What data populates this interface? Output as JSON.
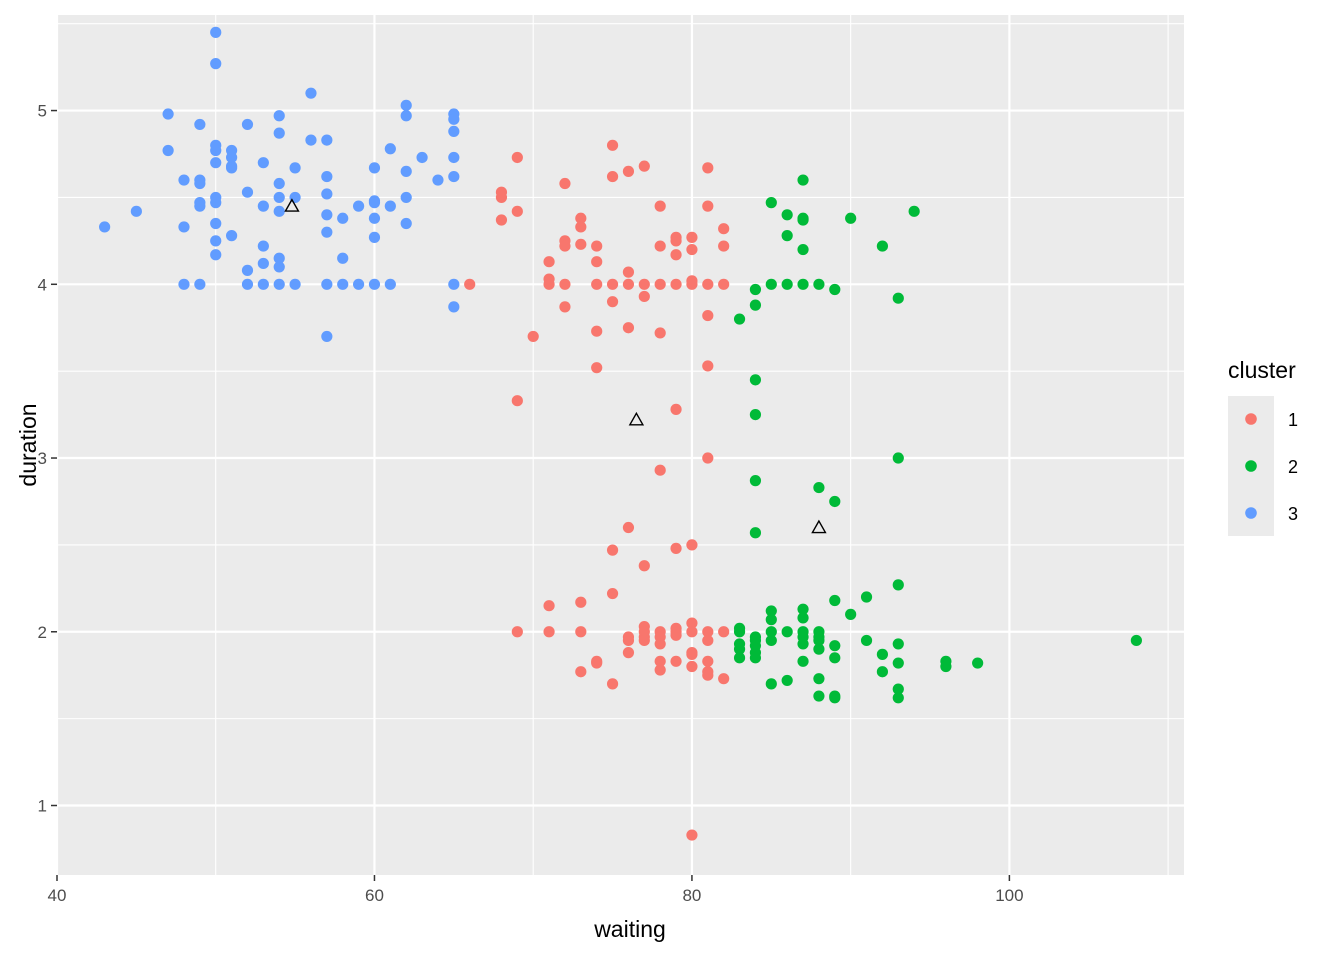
{
  "chart_data": {
    "type": "scatter",
    "xlabel": "waiting",
    "ylabel": "duration",
    "xlim": [
      40,
      111
    ],
    "ylim": [
      0.6,
      5.55
    ],
    "x_ticks": [
      40,
      60,
      80,
      100
    ],
    "y_ticks": [
      1,
      2,
      3,
      4,
      5
    ],
    "grid": true,
    "legend": {
      "title": "cluster",
      "position": "right"
    },
    "series": [
      {
        "name": "1",
        "color": "#F8766D",
        "points": [
          [
            66,
            4.0
          ],
          [
            68,
            4.53
          ],
          [
            68,
            4.5
          ],
          [
            68,
            4.37
          ],
          [
            69,
            4.73
          ],
          [
            69,
            4.42
          ],
          [
            70,
            3.7
          ],
          [
            71,
            4.13
          ],
          [
            71,
            4.03
          ],
          [
            71,
            4.0
          ],
          [
            72,
            4.58
          ],
          [
            72,
            4.25
          ],
          [
            72,
            4.22
          ],
          [
            72,
            4.0
          ],
          [
            72,
            3.87
          ],
          [
            73,
            4.38
          ],
          [
            73,
            4.33
          ],
          [
            73,
            4.23
          ],
          [
            74,
            4.22
          ],
          [
            74,
            4.13
          ],
          [
            74,
            4.0
          ],
          [
            74,
            3.73
          ],
          [
            74,
            3.52
          ],
          [
            75,
            4.8
          ],
          [
            75,
            4.62
          ],
          [
            75,
            4.0
          ],
          [
            75,
            3.9
          ],
          [
            76,
            4.65
          ],
          [
            76,
            4.07
          ],
          [
            76,
            4.0
          ],
          [
            76,
            3.75
          ],
          [
            77,
            4.68
          ],
          [
            77,
            4.0
          ],
          [
            77,
            3.93
          ],
          [
            78,
            4.45
          ],
          [
            78,
            4.22
          ],
          [
            78,
            4.0
          ],
          [
            78,
            3.72
          ],
          [
            79,
            4.27
          ],
          [
            79,
            4.25
          ],
          [
            79,
            4.17
          ],
          [
            79,
            4.0
          ],
          [
            80,
            4.27
          ],
          [
            80,
            4.2
          ],
          [
            80,
            4.02
          ],
          [
            80,
            4.0
          ],
          [
            81,
            4.67
          ],
          [
            81,
            4.45
          ],
          [
            81,
            4.0
          ],
          [
            81,
            3.82
          ],
          [
            81,
            3.53
          ],
          [
            82,
            4.32
          ],
          [
            82,
            4.22
          ],
          [
            82,
            4.0
          ],
          [
            69,
            3.33
          ],
          [
            79,
            3.28
          ],
          [
            78,
            2.93
          ],
          [
            81,
            3.0
          ],
          [
            76,
            2.6
          ],
          [
            75,
            2.47
          ],
          [
            77,
            2.38
          ],
          [
            79,
            2.48
          ],
          [
            80,
            2.5
          ],
          [
            75,
            2.22
          ],
          [
            71,
            2.15
          ],
          [
            73,
            2.17
          ],
          [
            69,
            2.0
          ],
          [
            71,
            2.0
          ],
          [
            73,
            2.0
          ],
          [
            73,
            1.77
          ],
          [
            74,
            1.83
          ],
          [
            74,
            1.82
          ],
          [
            75,
            1.7
          ],
          [
            76,
            1.97
          ],
          [
            76,
            1.95
          ],
          [
            76,
            1.88
          ],
          [
            77,
            2.03
          ],
          [
            77,
            2.0
          ],
          [
            77,
            1.97
          ],
          [
            77,
            1.95
          ],
          [
            78,
            2.0
          ],
          [
            78,
            1.97
          ],
          [
            78,
            1.93
          ],
          [
            78,
            1.83
          ],
          [
            78,
            1.78
          ],
          [
            79,
            2.02
          ],
          [
            79,
            2.0
          ],
          [
            79,
            1.98
          ],
          [
            79,
            1.83
          ],
          [
            80,
            2.05
          ],
          [
            80,
            2.0
          ],
          [
            80,
            1.88
          ],
          [
            80,
            1.87
          ],
          [
            80,
            1.8
          ],
          [
            81,
            2.0
          ],
          [
            81,
            1.95
          ],
          [
            81,
            1.83
          ],
          [
            81,
            1.77
          ],
          [
            81,
            1.75
          ],
          [
            82,
            2.0
          ],
          [
            82,
            1.73
          ],
          [
            80,
            0.83
          ]
        ]
      },
      {
        "name": "2",
        "color": "#00BA38",
        "points": [
          [
            85,
            4.47
          ],
          [
            86,
            4.4
          ],
          [
            86,
            4.28
          ],
          [
            87,
            4.6
          ],
          [
            87,
            4.38
          ],
          [
            87,
            4.37
          ],
          [
            87,
            4.2
          ],
          [
            90,
            4.38
          ],
          [
            92,
            4.22
          ],
          [
            94,
            4.42
          ],
          [
            93,
            3.92
          ],
          [
            84,
            3.97
          ],
          [
            84,
            3.88
          ],
          [
            83,
            3.8
          ],
          [
            85,
            4.0
          ],
          [
            86,
            4.0
          ],
          [
            87,
            4.0
          ],
          [
            88,
            4.0
          ],
          [
            89,
            3.97
          ],
          [
            84,
            3.45
          ],
          [
            84,
            3.25
          ],
          [
            84,
            2.87
          ],
          [
            84,
            2.57
          ],
          [
            88,
            2.83
          ],
          [
            89,
            2.75
          ],
          [
            93,
            3.0
          ],
          [
            83,
            2.02
          ],
          [
            83,
            2.0
          ],
          [
            83,
            1.93
          ],
          [
            83,
            1.9
          ],
          [
            83,
            1.85
          ],
          [
            84,
            1.97
          ],
          [
            84,
            1.95
          ],
          [
            84,
            1.92
          ],
          [
            84,
            1.88
          ],
          [
            84,
            1.85
          ],
          [
            85,
            2.12
          ],
          [
            85,
            2.07
          ],
          [
            85,
            2.0
          ],
          [
            85,
            1.95
          ],
          [
            85,
            1.7
          ],
          [
            86,
            2.0
          ],
          [
            86,
            1.72
          ],
          [
            87,
            2.13
          ],
          [
            87,
            2.08
          ],
          [
            87,
            2.0
          ],
          [
            87,
            1.97
          ],
          [
            87,
            1.93
          ],
          [
            87,
            1.83
          ],
          [
            88,
            2.0
          ],
          [
            88,
            1.97
          ],
          [
            88,
            1.95
          ],
          [
            88,
            1.9
          ],
          [
            88,
            1.73
          ],
          [
            88,
            1.63
          ],
          [
            89,
            2.18
          ],
          [
            89,
            1.92
          ],
          [
            89,
            1.85
          ],
          [
            89,
            1.63
          ],
          [
            89,
            1.62
          ],
          [
            90,
            2.1
          ],
          [
            91,
            2.2
          ],
          [
            91,
            1.95
          ],
          [
            92,
            1.87
          ],
          [
            92,
            1.77
          ],
          [
            93,
            2.27
          ],
          [
            93,
            1.93
          ],
          [
            93,
            1.82
          ],
          [
            93,
            1.67
          ],
          [
            93,
            1.62
          ],
          [
            96,
            1.83
          ],
          [
            96,
            1.8
          ],
          [
            98,
            1.82
          ],
          [
            108,
            1.95
          ]
        ]
      },
      {
        "name": "3",
        "color": "#619CFF",
        "points": [
          [
            43,
            4.33
          ],
          [
            45,
            4.42
          ],
          [
            47,
            4.98
          ],
          [
            47,
            4.77
          ],
          [
            48,
            4.6
          ],
          [
            48,
            4.33
          ],
          [
            48,
            4.0
          ],
          [
            49,
            4.92
          ],
          [
            49,
            4.6
          ],
          [
            49,
            4.58
          ],
          [
            49,
            4.47
          ],
          [
            49,
            4.45
          ],
          [
            49,
            4.0
          ],
          [
            50,
            5.45
          ],
          [
            50,
            5.27
          ],
          [
            50,
            4.8
          ],
          [
            50,
            4.77
          ],
          [
            50,
            4.7
          ],
          [
            50,
            4.5
          ],
          [
            50,
            4.47
          ],
          [
            50,
            4.35
          ],
          [
            50,
            4.25
          ],
          [
            50,
            4.17
          ],
          [
            51,
            4.77
          ],
          [
            51,
            4.73
          ],
          [
            51,
            4.68
          ],
          [
            51,
            4.67
          ],
          [
            51,
            4.28
          ],
          [
            52,
            4.92
          ],
          [
            52,
            4.53
          ],
          [
            52,
            4.08
          ],
          [
            52,
            4.0
          ],
          [
            53,
            4.7
          ],
          [
            53,
            4.45
          ],
          [
            53,
            4.22
          ],
          [
            53,
            4.12
          ],
          [
            53,
            4.0
          ],
          [
            54,
            4.97
          ],
          [
            54,
            4.87
          ],
          [
            54,
            4.58
          ],
          [
            54,
            4.5
          ],
          [
            54,
            4.42
          ],
          [
            54,
            4.15
          ],
          [
            54,
            4.1
          ],
          [
            54,
            4.0
          ],
          [
            55,
            4.67
          ],
          [
            55,
            4.5
          ],
          [
            55,
            4.0
          ],
          [
            56,
            5.1
          ],
          [
            56,
            4.83
          ],
          [
            57,
            4.83
          ],
          [
            57,
            4.62
          ],
          [
            57,
            4.52
          ],
          [
            57,
            4.4
          ],
          [
            57,
            4.3
          ],
          [
            57,
            4.0
          ],
          [
            57,
            3.7
          ],
          [
            58,
            4.38
          ],
          [
            58,
            4.15
          ],
          [
            58,
            4.0
          ],
          [
            59,
            4.45
          ],
          [
            59,
            4.0
          ],
          [
            60,
            4.67
          ],
          [
            60,
            4.48
          ],
          [
            60,
            4.47
          ],
          [
            60,
            4.38
          ],
          [
            60,
            4.27
          ],
          [
            60,
            4.0
          ],
          [
            61,
            4.78
          ],
          [
            61,
            4.45
          ],
          [
            61,
            4.0
          ],
          [
            62,
            5.03
          ],
          [
            62,
            4.97
          ],
          [
            62,
            4.65
          ],
          [
            62,
            4.5
          ],
          [
            62,
            4.35
          ],
          [
            63,
            4.73
          ],
          [
            64,
            4.6
          ],
          [
            65,
            4.98
          ],
          [
            65,
            4.95
          ],
          [
            65,
            4.88
          ],
          [
            65,
            4.73
          ],
          [
            65,
            4.62
          ],
          [
            65,
            4.0
          ],
          [
            65,
            3.87
          ]
        ]
      }
    ],
    "centers": [
      {
        "x": 54.8,
        "y": 4.45
      },
      {
        "x": 76.5,
        "y": 3.22
      },
      {
        "x": 88.0,
        "y": 2.6
      }
    ]
  }
}
